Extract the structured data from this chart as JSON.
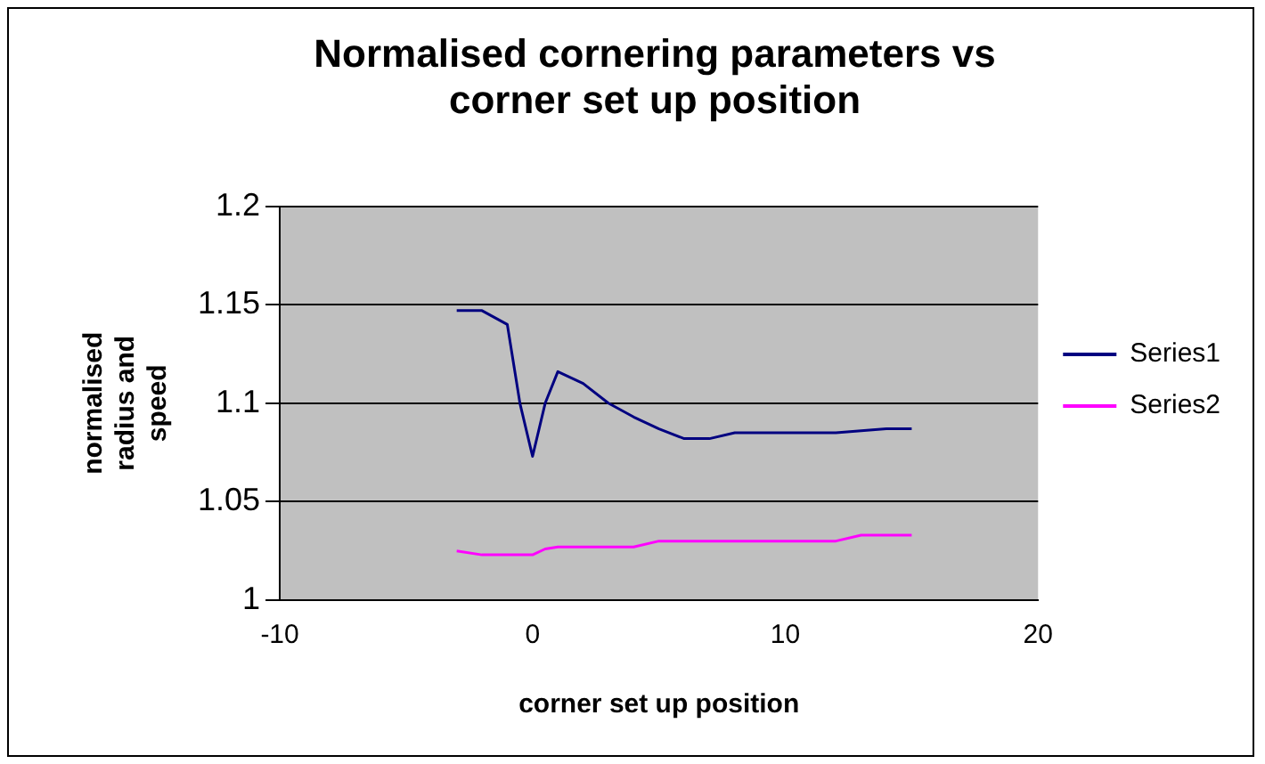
{
  "chart_data": {
    "type": "line",
    "title": "Normalised cornering parameters vs corner set up position",
    "xlabel": "corner set up position",
    "ylabel": "normalised radius and speed",
    "xlim": [
      -10,
      20
    ],
    "xticks": [
      -10,
      0,
      10,
      20
    ],
    "ylim": [
      1,
      1.2
    ],
    "yticks": [
      1,
      1.05,
      1.1,
      1.15,
      1.2
    ],
    "grid": "y",
    "legend": "right",
    "marker": "none",
    "series": [
      {
        "name": "Series1",
        "color": "#000080",
        "x": [
          -3,
          -2,
          -1,
          -0.5,
          0,
          0.5,
          1,
          2,
          3,
          4,
          5,
          6,
          7,
          8,
          10,
          12,
          14,
          15
        ],
        "values": [
          1.147,
          1.147,
          1.14,
          1.1,
          1.073,
          1.1,
          1.116,
          1.11,
          1.1,
          1.093,
          1.087,
          1.082,
          1.082,
          1.085,
          1.085,
          1.085,
          1.087,
          1.087
        ]
      },
      {
        "name": "Series2",
        "color": "#ff00ff",
        "x": [
          -3,
          -2,
          -1,
          0,
          0.5,
          1,
          3,
          4,
          5,
          8,
          12,
          13,
          15
        ],
        "values": [
          1.025,
          1.023,
          1.023,
          1.023,
          1.026,
          1.027,
          1.027,
          1.027,
          1.03,
          1.03,
          1.03,
          1.033,
          1.033
        ]
      }
    ]
  }
}
